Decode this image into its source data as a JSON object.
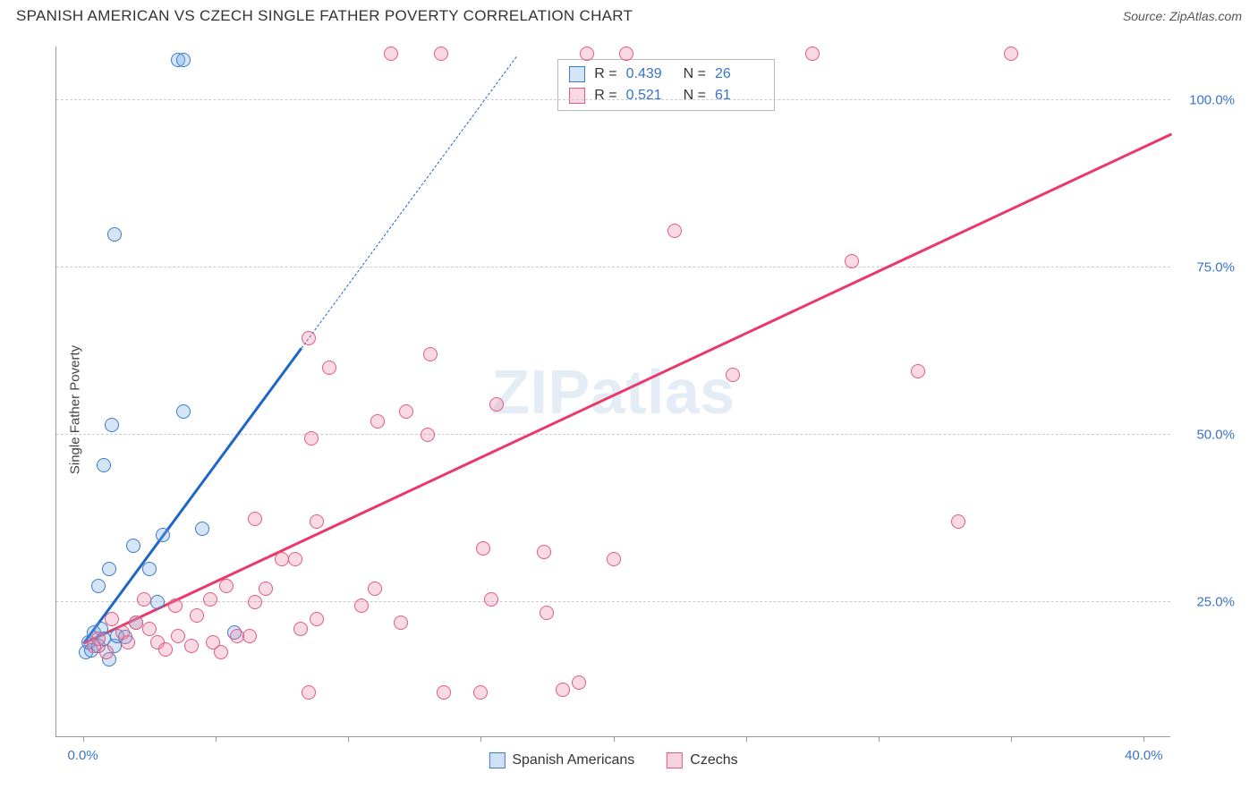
{
  "header": {
    "title": "SPANISH AMERICAN VS CZECH SINGLE FATHER POVERTY CORRELATION CHART",
    "source_prefix": "Source: ",
    "source_link": "ZipAtlas.com"
  },
  "chart": {
    "type": "scatter",
    "ylabel": "Single Father Poverty",
    "background_color": "#ffffff",
    "grid_color": "#cccccc",
    "axis_color": "#999999",
    "tick_label_color": "#3973c6",
    "xlim": [
      -1,
      41
    ],
    "ylim": [
      5,
      108
    ],
    "y_gridlines": [
      25,
      50,
      75,
      100
    ],
    "ytick_labels": [
      "25.0%",
      "50.0%",
      "75.0%",
      "100.0%"
    ],
    "x_ticks": [
      0,
      5,
      10,
      15,
      20,
      25,
      30,
      35,
      40
    ],
    "xtick_labels": {
      "0": "0.0%",
      "40": "40.0%"
    },
    "point_radius": 8,
    "point_border_width": 1.4,
    "series": [
      {
        "name": "Spanish Americans",
        "legend_label": "Spanish Americans",
        "R": "0.439",
        "N": "26",
        "fill": "rgba(120,170,225,0.30)",
        "stroke": "#3a7bc8",
        "trend": {
          "color": "#1e66c8",
          "p1": [
            0,
            19
          ],
          "p2": [
            8.2,
            63
          ],
          "extend_to_x": 16.3
        },
        "points": [
          [
            0.1,
            17.5
          ],
          [
            0.2,
            19.0
          ],
          [
            0.3,
            17.8
          ],
          [
            0.4,
            20.5
          ],
          [
            0.6,
            18.5
          ],
          [
            0.7,
            21.0
          ],
          [
            0.8,
            19.5
          ],
          [
            0.6,
            27.5
          ],
          [
            1.2,
            18.5
          ],
          [
            1.3,
            20.0
          ],
          [
            1.6,
            19.8
          ],
          [
            0.8,
            45.5
          ],
          [
            1.1,
            51.5
          ],
          [
            1.0,
            30.0
          ],
          [
            1.9,
            33.5
          ],
          [
            2.5,
            30.0
          ],
          [
            3.0,
            35.0
          ],
          [
            4.5,
            36.0
          ],
          [
            3.6,
            106.0
          ],
          [
            3.8,
            106.0
          ],
          [
            1.2,
            80.0
          ],
          [
            3.8,
            53.5
          ],
          [
            5.7,
            20.5
          ],
          [
            2.8,
            25.0
          ],
          [
            2.0,
            22.0
          ],
          [
            1.0,
            16.5
          ]
        ]
      },
      {
        "name": "Czechs",
        "legend_label": "Czechs",
        "R": "0.521",
        "N": "61",
        "fill": "rgba(235,130,160,0.30)",
        "stroke": "#e05a85",
        "trend": {
          "color": "#e9396a",
          "p1": [
            0,
            19
          ],
          "p2": [
            41,
            95
          ],
          "extend_to_x": 41
        },
        "points": [
          [
            0.4,
            18.5
          ],
          [
            0.6,
            19.5
          ],
          [
            0.9,
            17.5
          ],
          [
            1.5,
            20.5
          ],
          [
            1.7,
            19.0
          ],
          [
            1.1,
            22.5
          ],
          [
            2.0,
            22.0
          ],
          [
            2.5,
            21.0
          ],
          [
            2.3,
            25.5
          ],
          [
            2.8,
            19.0
          ],
          [
            3.1,
            18.0
          ],
          [
            3.6,
            20.0
          ],
          [
            3.5,
            24.5
          ],
          [
            4.1,
            18.5
          ],
          [
            4.3,
            23.0
          ],
          [
            4.8,
            25.5
          ],
          [
            4.9,
            19.0
          ],
          [
            5.4,
            27.5
          ],
          [
            5.8,
            20.0
          ],
          [
            5.2,
            17.5
          ],
          [
            6.3,
            20.0
          ],
          [
            6.5,
            25.0
          ],
          [
            6.5,
            37.5
          ],
          [
            6.9,
            27.0
          ],
          [
            7.5,
            31.5
          ],
          [
            8.0,
            31.5
          ],
          [
            8.2,
            21.0
          ],
          [
            8.5,
            11.5
          ],
          [
            8.5,
            64.5
          ],
          [
            8.6,
            49.5
          ],
          [
            8.8,
            22.5
          ],
          [
            8.8,
            37.0
          ],
          [
            9.3,
            60.0
          ],
          [
            10.5,
            24.5
          ],
          [
            11.0,
            27.0
          ],
          [
            11.1,
            52.0
          ],
          [
            11.6,
            107.0
          ],
          [
            12.0,
            22.0
          ],
          [
            12.2,
            53.5
          ],
          [
            13.0,
            50.0
          ],
          [
            13.1,
            62.0
          ],
          [
            13.5,
            107.0
          ],
          [
            13.6,
            11.5
          ],
          [
            15.0,
            11.5
          ],
          [
            15.1,
            33.0
          ],
          [
            15.4,
            25.5
          ],
          [
            15.6,
            54.5
          ],
          [
            17.4,
            32.5
          ],
          [
            17.5,
            23.5
          ],
          [
            18.1,
            12.0
          ],
          [
            18.7,
            13.0
          ],
          [
            19.0,
            107.0
          ],
          [
            20.0,
            31.5
          ],
          [
            20.5,
            107.0
          ],
          [
            22.3,
            80.5
          ],
          [
            24.5,
            59.0
          ],
          [
            27.5,
            107.0
          ],
          [
            29.0,
            76.0
          ],
          [
            31.5,
            59.5
          ],
          [
            33.0,
            37.0
          ],
          [
            35.0,
            107.0
          ]
        ]
      }
    ],
    "x_legend": [
      {
        "label": "Spanish Americans",
        "fill": "rgba(120,170,225,0.35)",
        "stroke": "#3a7bc8"
      },
      {
        "label": "Czechs",
        "fill": "rgba(235,130,160,0.35)",
        "stroke": "#e05a85"
      }
    ],
    "watermark": {
      "bold": "ZIP",
      "rest": "atlas"
    }
  },
  "stats_box": {
    "r_label": "R =",
    "n_label": "N ="
  }
}
